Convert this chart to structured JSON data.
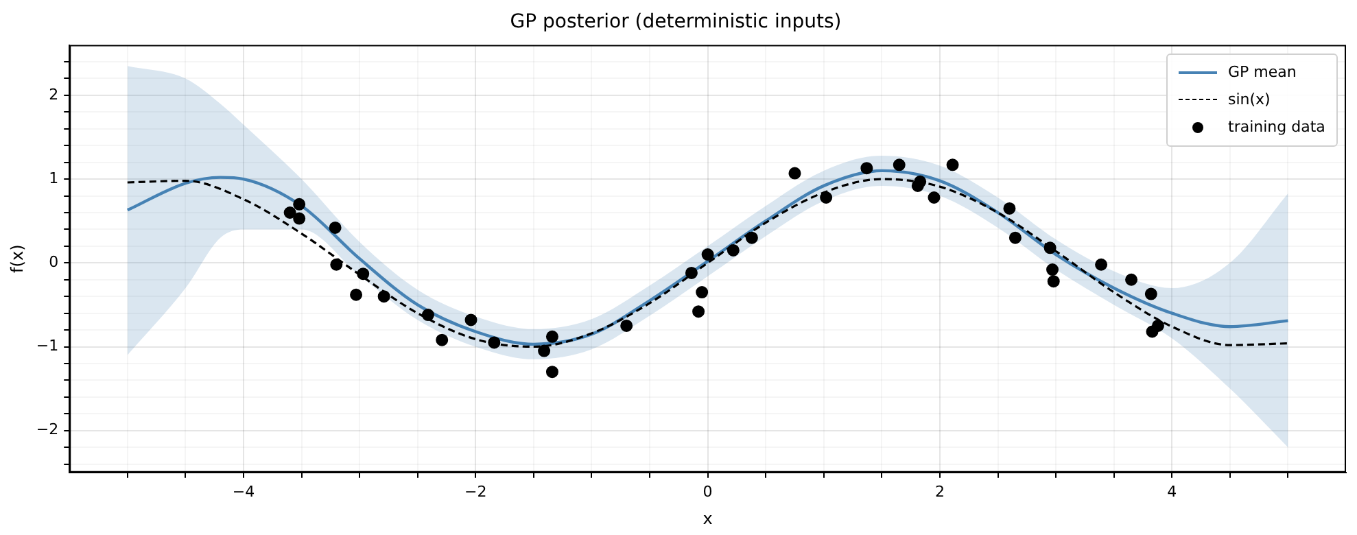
{
  "chart_data": {
    "type": "line",
    "title": "GP posterior (deterministic inputs)",
    "xlabel": "x",
    "ylabel": "f(x)",
    "xlim": [
      -5.5,
      5.5
    ],
    "ylim": [
      -2.5,
      2.6
    ],
    "xticks": [
      {
        "value": -5,
        "label": null
      },
      {
        "value": -4.5,
        "label": null
      },
      {
        "value": -4,
        "label": "−4"
      },
      {
        "value": -3.5,
        "label": null
      },
      {
        "value": -3,
        "label": null
      },
      {
        "value": -2.5,
        "label": null
      },
      {
        "value": -2,
        "label": "−2"
      },
      {
        "value": -1.5,
        "label": null
      },
      {
        "value": -1,
        "label": null
      },
      {
        "value": -0.5,
        "label": null
      },
      {
        "value": 0,
        "label": "0"
      },
      {
        "value": 0.5,
        "label": null
      },
      {
        "value": 1,
        "label": null
      },
      {
        "value": 1.5,
        "label": null
      },
      {
        "value": 2,
        "label": "2"
      },
      {
        "value": 2.5,
        "label": null
      },
      {
        "value": 3,
        "label": null
      },
      {
        "value": 3.5,
        "label": null
      },
      {
        "value": 4,
        "label": "4"
      },
      {
        "value": 4.5,
        "label": null
      },
      {
        "value": 5,
        "label": null
      }
    ],
    "yticks": [
      {
        "value": -2.4,
        "label": null
      },
      {
        "value": -2.2,
        "label": null
      },
      {
        "value": -2,
        "label": "−2"
      },
      {
        "value": -1.8,
        "label": null
      },
      {
        "value": -1.6,
        "label": null
      },
      {
        "value": -1.4,
        "label": null
      },
      {
        "value": -1.2,
        "label": null
      },
      {
        "value": -1,
        "label": "−1"
      },
      {
        "value": -0.8,
        "label": null
      },
      {
        "value": -0.6,
        "label": null
      },
      {
        "value": -0.4,
        "label": null
      },
      {
        "value": -0.2,
        "label": null
      },
      {
        "value": 0,
        "label": "0"
      },
      {
        "value": 0.2,
        "label": null
      },
      {
        "value": 0.4,
        "label": null
      },
      {
        "value": 0.6,
        "label": null
      },
      {
        "value": 0.8,
        "label": null
      },
      {
        "value": 1,
        "label": "1"
      },
      {
        "value": 1.2,
        "label": null
      },
      {
        "value": 1.4,
        "label": null
      },
      {
        "value": 1.6,
        "label": null
      },
      {
        "value": 1.8,
        "label": null
      },
      {
        "value": 2,
        "label": "2"
      },
      {
        "value": 2.2,
        "label": null
      },
      {
        "value": 2.4,
        "label": null
      }
    ],
    "grid": true,
    "legend": "top right",
    "series": [
      {
        "name": "GP mean",
        "color": "#4682b4",
        "line_style": "solid",
        "x": [
          -5,
          -4.5,
          -4.2,
          -4,
          -3.5,
          -3,
          -2.5,
          -2,
          -1.5,
          -1,
          -0.5,
          0,
          0.5,
          1,
          1.5,
          2,
          2.5,
          3,
          3.5,
          4,
          4.5,
          5
        ],
        "values": [
          0.63,
          0.95,
          1.02,
          1.0,
          0.68,
          0.05,
          -0.5,
          -0.82,
          -0.97,
          -0.85,
          -0.45,
          0.02,
          0.5,
          0.92,
          1.1,
          0.98,
          0.6,
          0.1,
          -0.3,
          -0.6,
          -0.76,
          -0.69
        ],
        "lower": [
          -1.1,
          -0.3,
          0.3,
          0.4,
          0.4,
          -0.15,
          -0.68,
          -1.0,
          -1.15,
          -1.03,
          -0.63,
          -0.16,
          0.32,
          0.74,
          0.92,
          0.8,
          0.42,
          -0.08,
          -0.5,
          -0.9,
          -1.5,
          -2.2
        ],
        "upper": [
          2.35,
          2.2,
          1.9,
          1.65,
          1.0,
          0.25,
          -0.32,
          -0.64,
          -0.79,
          -0.67,
          -0.27,
          0.2,
          0.68,
          1.1,
          1.28,
          1.16,
          0.78,
          0.28,
          -0.1,
          -0.3,
          0.0,
          0.83
        ]
      },
      {
        "name": "sin(x)",
        "color": "#000000",
        "line_style": "dashed",
        "x": [
          -5,
          -4.5,
          -4,
          -3.5,
          -3,
          -2.5,
          -2,
          -1.5,
          -1,
          -0.5,
          0,
          0.5,
          1,
          1.5,
          2,
          2.5,
          3,
          3.5,
          4,
          4.5,
          5
        ],
        "values": [
          0.96,
          0.98,
          0.76,
          0.35,
          -0.14,
          -0.6,
          -0.91,
          -1.0,
          -0.84,
          -0.48,
          0.0,
          0.48,
          0.84,
          1.0,
          0.91,
          0.6,
          0.14,
          -0.35,
          -0.76,
          -0.98,
          -0.96
        ]
      },
      {
        "name": "training data",
        "type": "scatter",
        "marker": "circle",
        "color": "#000000",
        "x": [
          -3.6,
          -3.52,
          -3.52,
          -3.21,
          -3.2,
          -3.03,
          -2.97,
          -2.79,
          -2.41,
          -2.29,
          -2.04,
          -1.84,
          -1.41,
          -1.34,
          -1.34,
          -0.7,
          -0.14,
          -0.08,
          -0.05,
          0.0,
          0.22,
          0.38,
          0.75,
          1.02,
          1.37,
          1.65,
          1.81,
          1.83,
          1.95,
          2.11,
          2.6,
          2.65,
          2.95,
          2.97,
          2.98,
          3.39,
          3.65,
          3.82,
          3.83,
          3.88
        ],
        "values": [
          0.6,
          0.7,
          0.53,
          0.42,
          -0.02,
          -0.38,
          -0.13,
          -0.4,
          -0.62,
          -0.92,
          -0.68,
          -0.95,
          -1.05,
          -0.88,
          -1.3,
          -0.75,
          -0.12,
          -0.58,
          -0.35,
          0.1,
          0.15,
          0.3,
          1.07,
          0.78,
          1.13,
          1.17,
          0.92,
          0.97,
          0.78,
          1.17,
          0.65,
          0.3,
          0.18,
          -0.08,
          -0.22,
          -0.02,
          -0.2,
          -0.37,
          -0.82,
          -0.75
        ]
      }
    ]
  }
}
